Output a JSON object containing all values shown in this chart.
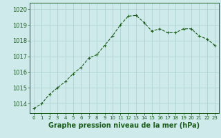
{
  "x": [
    0,
    1,
    2,
    3,
    4,
    5,
    6,
    7,
    8,
    9,
    10,
    11,
    12,
    13,
    14,
    15,
    16,
    17,
    18,
    19,
    20,
    21,
    22,
    23
  ],
  "y": [
    1013.7,
    1014.0,
    1014.6,
    1015.0,
    1015.4,
    1015.9,
    1016.3,
    1016.9,
    1017.1,
    1017.7,
    1018.3,
    1019.0,
    1019.55,
    1019.6,
    1019.15,
    1018.6,
    1018.75,
    1018.5,
    1018.5,
    1018.75,
    1018.75,
    1018.3,
    1018.1,
    1017.7
  ],
  "line_color": "#1a5c1a",
  "marker": "+",
  "marker_size": 3,
  "bg_color": "#ceeaea",
  "grid_color": "#aacece",
  "xlabel": "Graphe pression niveau de la mer (hPa)",
  "xlabel_color": "#1a5c1a",
  "xlabel_fontsize": 7.0,
  "ytick_labels": [
    "1014",
    "1015",
    "1016",
    "1017",
    "1018",
    "1019",
    "1020"
  ],
  "ylim": [
    1013.4,
    1020.4
  ],
  "xlim": [
    -0.5,
    23.5
  ],
  "yticks": [
    1014,
    1015,
    1016,
    1017,
    1018,
    1019,
    1020
  ],
  "xticks": [
    0,
    1,
    2,
    3,
    4,
    5,
    6,
    7,
    8,
    9,
    10,
    11,
    12,
    13,
    14,
    15,
    16,
    17,
    18,
    19,
    20,
    21,
    22,
    23
  ],
  "tick_color": "#1a5c1a",
  "ytick_fontsize": 6.0,
  "xtick_fontsize": 5.0,
  "axis_color": "#1a5c1a",
  "line_width": 0.8,
  "marker_edge_width": 0.8
}
